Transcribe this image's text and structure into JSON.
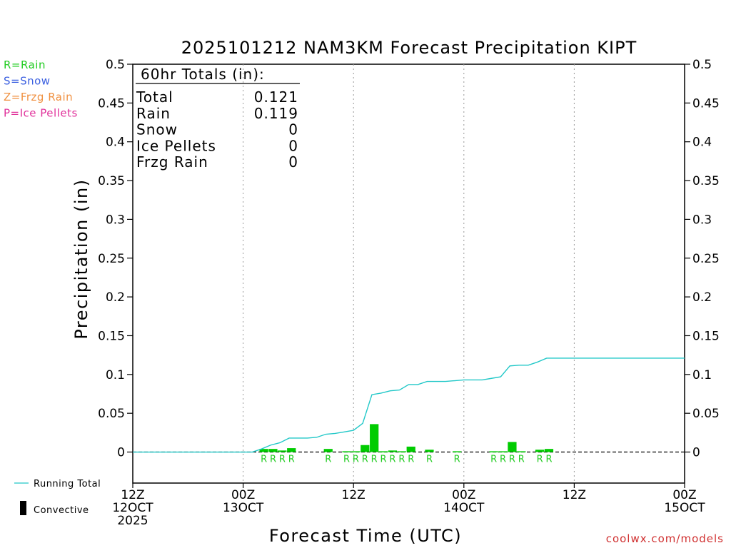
{
  "chart_data": {
    "type": "bar",
    "title": "2025101212 NAM3KM Forecast Precipitation KIPT",
    "xlabel": "Forecast Time (UTC)",
    "ylabel": "Precipitation (in)",
    "ylim": [
      -0.04,
      0.5
    ],
    "xlim": [
      0,
      60
    ],
    "grid": "vertical dotted lines at 00Z and 12Z",
    "y_ticks": [
      "0.5",
      "0.45",
      "0.4",
      "0.35",
      "0.3",
      "0.25",
      "0.2",
      "0.15",
      "0.1",
      "0.05",
      "0"
    ],
    "y_tick_values": [
      0.5,
      0.45,
      0.4,
      0.35,
      0.3,
      0.25,
      0.2,
      0.15,
      0.1,
      0.05,
      0
    ],
    "x_ticks": [
      {
        "hour": 0,
        "lines": [
          "12Z",
          "12OCT",
          "2025"
        ]
      },
      {
        "hour": 12,
        "lines": [
          "00Z",
          "13OCT"
        ]
      },
      {
        "hour": 24,
        "lines": [
          "12Z"
        ]
      },
      {
        "hour": 36,
        "lines": [
          "00Z",
          "14OCT"
        ]
      },
      {
        "hour": 48,
        "lines": [
          "12Z"
        ]
      },
      {
        "hour": 60,
        "lines": [
          "00Z",
          "15OCT"
        ]
      }
    ],
    "precip_legend": [
      {
        "label": "R=Rain",
        "color": "#22cc22"
      },
      {
        "label": "S=Snow",
        "color": "#3a5fe0"
      },
      {
        "label": "Z=Frzg Rain",
        "color": "#f09040"
      },
      {
        "label": "P=Ice Pellets",
        "color": "#e0309a"
      }
    ],
    "series_legend": [
      {
        "label": "Running Total",
        "color": "#22c8c8"
      },
      {
        "label": "Convective",
        "color": "#000000"
      }
    ],
    "totals_box": {
      "header": "60hr Totals (in):",
      "rows": [
        {
          "label": "Total",
          "value": "0.121"
        },
        {
          "label": "Rain",
          "value": "0.119"
        },
        {
          "label": "Snow",
          "value": "0"
        },
        {
          "label": "Ice Pellets",
          "value": "0"
        },
        {
          "label": "Frzg Rain",
          "value": "0"
        }
      ]
    },
    "bars": [
      {
        "hour": 14,
        "value": 0.004,
        "ptype": "R"
      },
      {
        "hour": 15,
        "value": 0.004,
        "ptype": "R"
      },
      {
        "hour": 16,
        "value": 0.002,
        "ptype": "R"
      },
      {
        "hour": 17,
        "value": 0.005,
        "ptype": "R"
      },
      {
        "hour": 21,
        "value": 0.004,
        "ptype": "R"
      },
      {
        "hour": 23,
        "value": 0.001,
        "ptype": "R"
      },
      {
        "hour": 24,
        "value": 0.001,
        "ptype": "R"
      },
      {
        "hour": 25,
        "value": 0.009,
        "ptype": "R"
      },
      {
        "hour": 26,
        "value": 0.036,
        "ptype": "R"
      },
      {
        "hour": 27,
        "value": 0.001,
        "ptype": "R"
      },
      {
        "hour": 28,
        "value": 0.002,
        "ptype": "R"
      },
      {
        "hour": 29,
        "value": 0.001,
        "ptype": "R"
      },
      {
        "hour": 30,
        "value": 0.007,
        "ptype": "R"
      },
      {
        "hour": 32,
        "value": 0.003,
        "ptype": "R"
      },
      {
        "hour": 35,
        "value": 0.001,
        "ptype": "R"
      },
      {
        "hour": 39,
        "value": 0.001,
        "ptype": "R"
      },
      {
        "hour": 40,
        "value": 0.001,
        "ptype": "R"
      },
      {
        "hour": 41,
        "value": 0.013,
        "ptype": "R"
      },
      {
        "hour": 42,
        "value": 0.001,
        "ptype": "R"
      },
      {
        "hour": 44,
        "value": 0.003,
        "ptype": "R"
      },
      {
        "hour": 45,
        "value": 0.004,
        "ptype": "R"
      }
    ],
    "bar_labels": [
      {
        "hour": 14,
        "text": "R"
      },
      {
        "hour": 15,
        "text": "R"
      },
      {
        "hour": 16,
        "text": "R"
      },
      {
        "hour": 17,
        "text": "R"
      },
      {
        "hour": 21,
        "text": "R"
      },
      {
        "hour": 23,
        "text": "R"
      },
      {
        "hour": 24,
        "text": "R"
      },
      {
        "hour": 25,
        "text": "R"
      },
      {
        "hour": 26,
        "text": "R"
      },
      {
        "hour": 27,
        "text": "R"
      },
      {
        "hour": 28,
        "text": "R"
      },
      {
        "hour": 29,
        "text": "R"
      },
      {
        "hour": 30,
        "text": "R"
      },
      {
        "hour": 32,
        "text": "R"
      },
      {
        "hour": 35,
        "text": "R"
      },
      {
        "hour": 39,
        "text": "R"
      },
      {
        "hour": 40,
        "text": "R"
      },
      {
        "hour": 41,
        "text": "R"
      },
      {
        "hour": 42,
        "text": "R"
      },
      {
        "hour": 44,
        "text": "R"
      },
      {
        "hour": 45,
        "text": "R"
      }
    ],
    "running_total": [
      [
        0,
        0
      ],
      [
        1,
        0
      ],
      [
        2,
        0
      ],
      [
        3,
        0
      ],
      [
        4,
        0
      ],
      [
        5,
        0
      ],
      [
        6,
        0
      ],
      [
        7,
        0
      ],
      [
        8,
        0
      ],
      [
        9,
        0
      ],
      [
        10,
        0
      ],
      [
        11,
        0
      ],
      [
        12,
        0
      ],
      [
        13,
        0
      ],
      [
        14,
        0.004
      ],
      [
        15,
        0.009
      ],
      [
        16,
        0.012
      ],
      [
        17,
        0.018
      ],
      [
        18,
        0.018
      ],
      [
        19,
        0.018
      ],
      [
        20,
        0.019
      ],
      [
        21,
        0.023
      ],
      [
        22,
        0.024
      ],
      [
        23,
        0.026
      ],
      [
        24,
        0.028
      ],
      [
        25,
        0.037
      ],
      [
        26,
        0.074
      ],
      [
        27,
        0.076
      ],
      [
        28,
        0.079
      ],
      [
        29,
        0.08
      ],
      [
        30,
        0.087
      ],
      [
        31,
        0.087
      ],
      [
        32,
        0.091
      ],
      [
        33,
        0.091
      ],
      [
        34,
        0.091
      ],
      [
        35,
        0.092
      ],
      [
        36,
        0.093
      ],
      [
        37,
        0.093
      ],
      [
        38,
        0.093
      ],
      [
        39,
        0.095
      ],
      [
        40,
        0.097
      ],
      [
        41,
        0.111
      ],
      [
        42,
        0.112
      ],
      [
        43,
        0.112
      ],
      [
        44,
        0.116
      ],
      [
        45,
        0.121
      ],
      [
        46,
        0.121
      ],
      [
        47,
        0.121
      ],
      [
        48,
        0.121
      ],
      [
        50,
        0.121
      ],
      [
        52,
        0.121
      ],
      [
        54,
        0.121
      ],
      [
        56,
        0.121
      ],
      [
        58,
        0.121
      ],
      [
        60,
        0.121
      ]
    ],
    "bar_color": "#00cc00",
    "line_color": "#22c8c8"
  },
  "credit": "coolwx.com/models"
}
